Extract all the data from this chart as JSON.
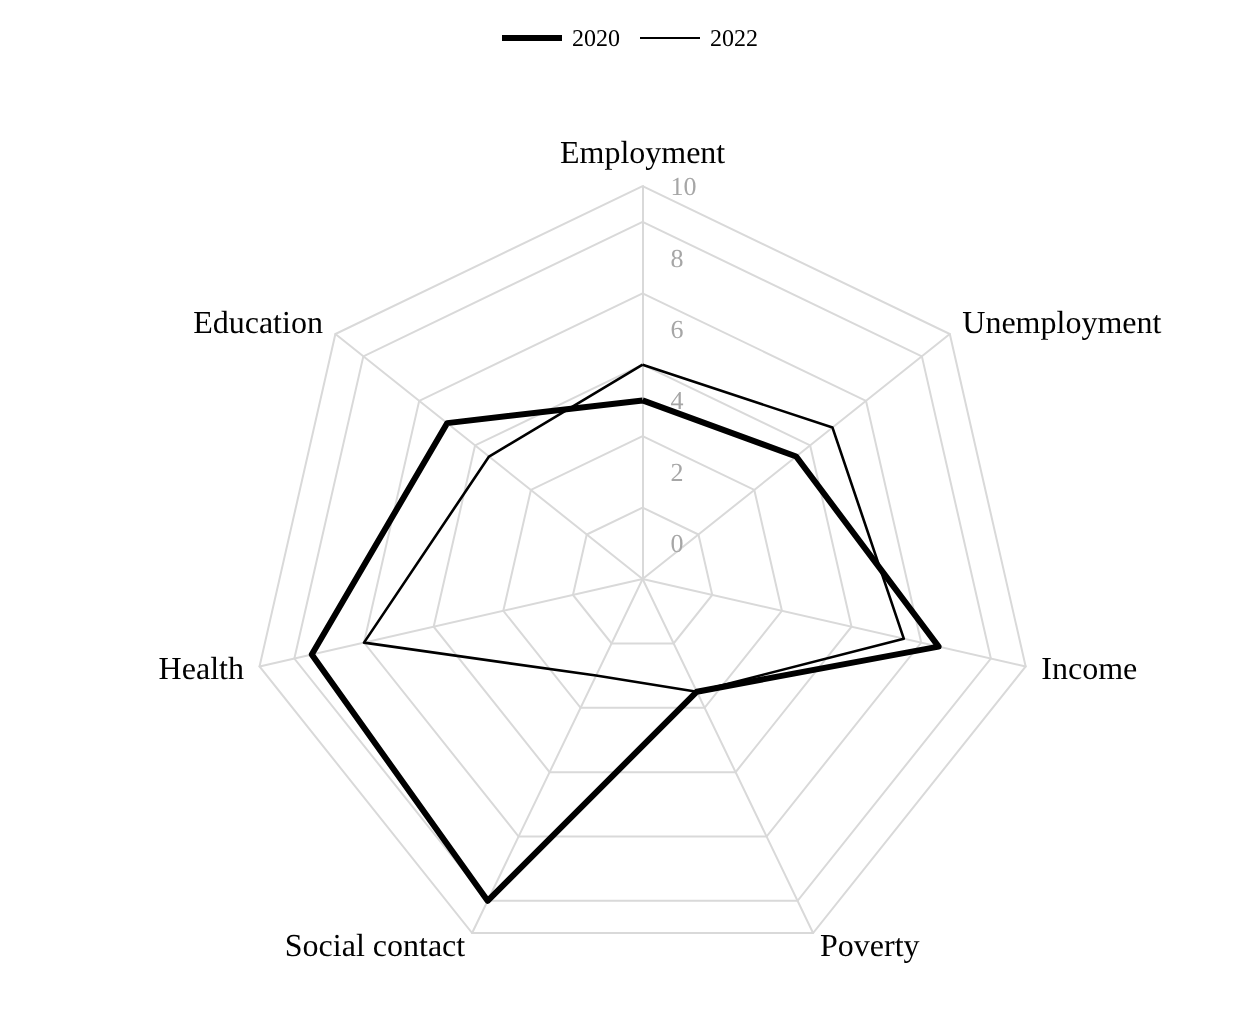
{
  "chart_data": {
    "type": "radar",
    "categories": [
      "Employment",
      "Unemployment",
      "Income",
      "Poverty",
      "Social contact",
      "Health",
      "Education"
    ],
    "series": [
      {
        "name": "2020",
        "color": "#000000",
        "values": [
          4,
          4.5,
          7.5,
          2.5,
          9,
          8.5,
          6
        ]
      },
      {
        "name": "2022",
        "color": "#000000",
        "values": [
          5,
          5.8,
          6.5,
          2.5,
          2,
          7,
          4.5
        ]
      }
    ],
    "ylim": [
      -1,
      10
    ],
    "yticks": [
      0,
      2,
      4,
      6,
      8,
      10
    ],
    "legend": "top",
    "marker": "none",
    "line_style": "solid"
  }
}
